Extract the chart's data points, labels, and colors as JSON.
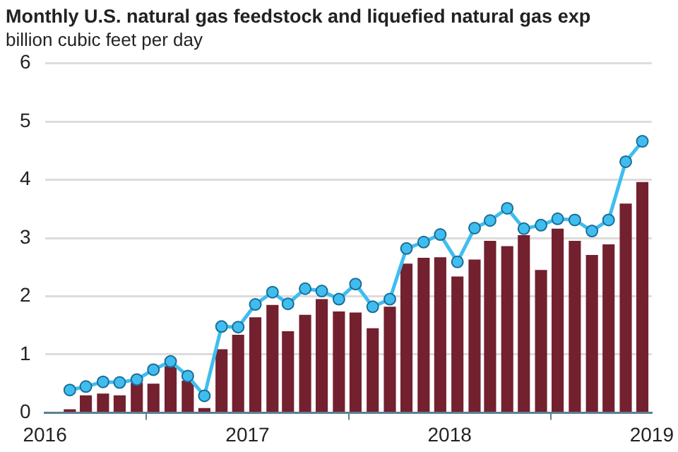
{
  "chart_data": {
    "type": "bar",
    "title": "Monthly U.S. natural gas feedstock and liquefied natural gas exp",
    "ylabel": "billion cubic feet per day",
    "x": [
      "2016-02-15",
      "2016-03-15",
      "2016-04-15",
      "2016-05-15",
      "2016-06-15",
      "2016-07-15",
      "2016-08-15",
      "2016-09-15",
      "2016-10-15",
      "2016-11-15",
      "2016-12-15",
      "2017-01-15",
      "2017-02-15",
      "2017-03-15",
      "2017-04-15",
      "2017-05-15",
      "2017-06-15",
      "2017-07-15",
      "2017-08-15",
      "2017-09-15",
      "2017-10-15",
      "2017-11-15",
      "2017-12-15",
      "2018-01-15",
      "2018-02-15",
      "2018-03-15",
      "2018-04-15",
      "2018-05-15",
      "2018-06-15",
      "2018-07-15",
      "2018-08-15",
      "2018-09-15",
      "2018-10-15",
      "2018-11-15",
      "2018-12-15"
    ],
    "series": [
      {
        "color": "#73202f",
        "values": [
          0.06,
          0.3,
          0.33,
          0.3,
          0.51,
          0.5,
          0.8,
          0.55,
          0.08,
          1.09,
          1.34,
          1.64,
          1.85,
          1.4,
          1.68,
          1.95,
          1.74,
          1.72,
          1.45,
          1.82,
          2.56,
          2.66,
          2.67,
          2.34,
          2.63,
          2.95,
          2.86,
          3.05,
          2.45,
          3.16,
          2.95,
          2.71,
          2.89,
          3.59,
          3.96
        ]
      },
      {
        "type": "line",
        "color": "#3fbdf0",
        "values": [
          0.39,
          0.45,
          0.53,
          0.52,
          0.57,
          0.74,
          0.88,
          0.63,
          0.29,
          1.48,
          1.47,
          1.86,
          2.07,
          1.87,
          2.13,
          2.09,
          1.95,
          2.21,
          1.82,
          1.95,
          2.82,
          2.93,
          3.06,
          2.59,
          3.17,
          3.3,
          3.51,
          3.16,
          3.22,
          3.33,
          3.31,
          3.12,
          3.31,
          4.31,
          4.66
        ]
      }
    ],
    "xlim": [
      "2016",
      "2019"
    ],
    "xticks": [
      "2016",
      "2017",
      "2018",
      "2019"
    ],
    "ylim": [
      0,
      6
    ],
    "yticks": [
      0,
      1,
      2,
      3,
      4,
      5,
      6
    ],
    "grid": "y",
    "marker": "circle",
    "legend": false
  }
}
